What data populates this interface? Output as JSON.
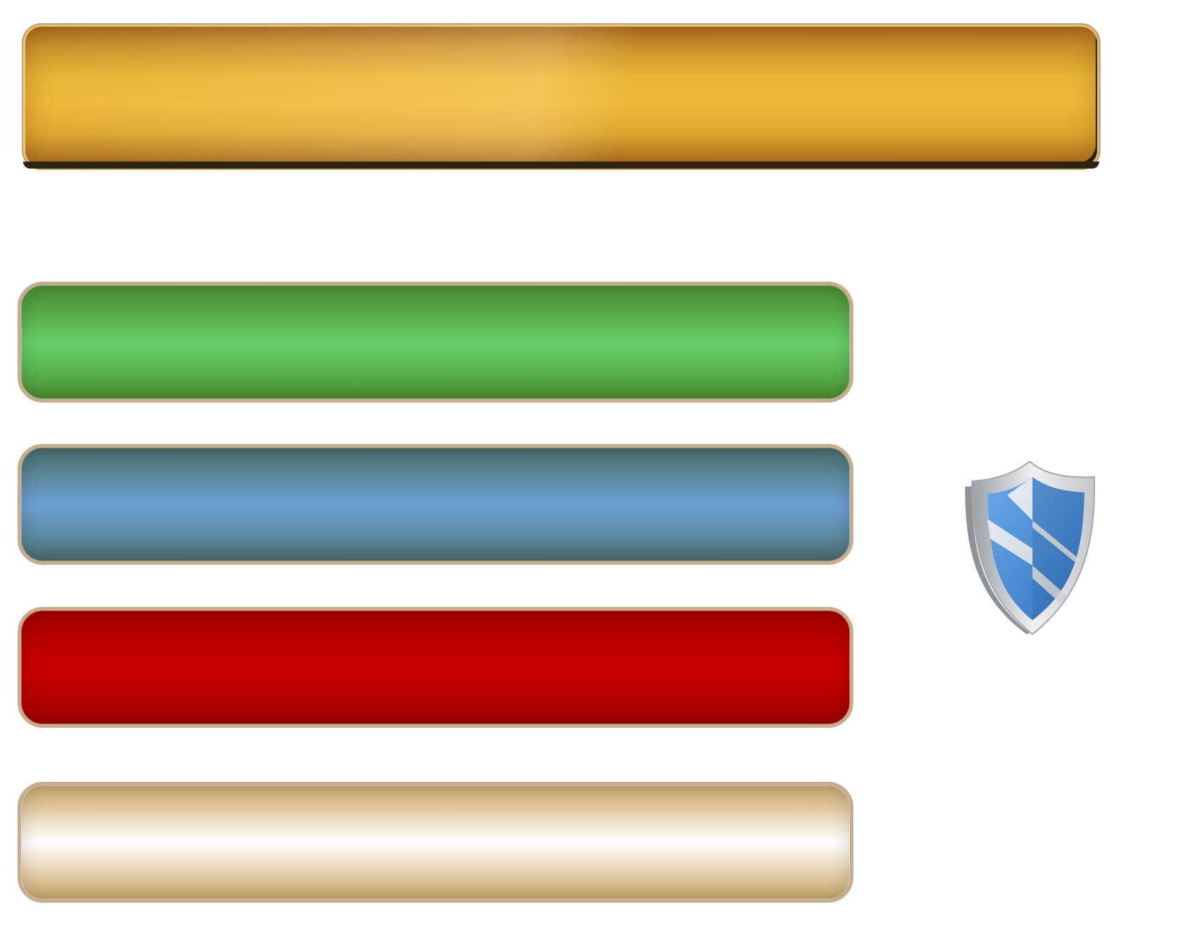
{
  "buttons": [
    {
      "name": "gold-bar-button",
      "label": "",
      "color": "#efb736"
    },
    {
      "name": "green-bar-button",
      "label": "",
      "color": "#63c966"
    },
    {
      "name": "blue-bar-button",
      "label": "",
      "color": "#6a9ccc"
    },
    {
      "name": "red-bar-button",
      "label": "",
      "color": "#c80000"
    },
    {
      "name": "cream-bar-button",
      "label": "",
      "color": "#ffffff"
    }
  ],
  "icons": {
    "shield": "shield-icon"
  },
  "colors": {
    "frame": "#c9ab8e",
    "shield_blue": "#4a90d9",
    "shield_silver": "#d9dde2"
  }
}
